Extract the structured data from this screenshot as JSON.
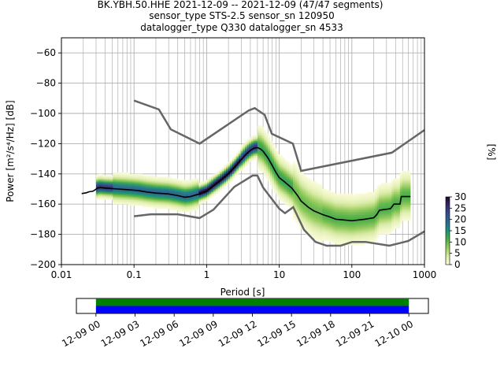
{
  "title": {
    "line1": "BK.YBH.50.HHE   2021-12-09 -- 2021-12-09  (47/47 segments)",
    "line2": "sensor_type STS-2.5 sensor_sn 120950",
    "line3": "datalogger_type Q330 datalogger_sn 4533"
  },
  "chart_data": [
    {
      "type": "heatmap",
      "xlabel": "Period [s]",
      "ylabel": "Power [m²/s⁴/Hz] [dB]",
      "x_scale": "log",
      "xlim": [
        0.01,
        1000
      ],
      "ylim": [
        -200,
        -50
      ],
      "x_ticks": [
        {
          "v": 0.01,
          "label": "0.01"
        },
        {
          "v": 0.1,
          "label": "0.1"
        },
        {
          "v": 1,
          "label": "1"
        },
        {
          "v": 10,
          "label": "10"
        },
        {
          "v": 100,
          "label": "100"
        },
        {
          "v": 1000,
          "label": "1000"
        }
      ],
      "y_ticks": [
        {
          "v": -60,
          "label": "−60"
        },
        {
          "v": -80,
          "label": "−80"
        },
        {
          "v": -100,
          "label": "−100"
        },
        {
          "v": -120,
          "label": "−120"
        },
        {
          "v": -140,
          "label": "−140"
        },
        {
          "v": -160,
          "label": "−160"
        },
        {
          "v": -180,
          "label": "−180"
        },
        {
          "v": -200,
          "label": "−200"
        }
      ],
      "grid": true,
      "colorbar": {
        "label": "[%]",
        "ticks": [
          "0",
          "5",
          "10",
          "15",
          "20",
          "25",
          "30"
        ],
        "range": [
          0,
          30
        ],
        "colors": [
          "#fffee0",
          "#d9eba5",
          "#98cc5e",
          "#4cae47",
          "#1f9279",
          "#2a6c8c",
          "#344f8c",
          "#38296b",
          "#1b0a2c"
        ]
      },
      "nhnm": [
        [
          0.1,
          -168
        ],
        [
          0.17,
          -166.7
        ],
        [
          0.4,
          -166.7
        ],
        [
          0.8,
          -169.2
        ],
        [
          1.24,
          -163.7
        ],
        [
          2.4,
          -148.6
        ],
        [
          4.3,
          -141.1
        ],
        [
          5.0,
          -141.1
        ],
        [
          6.0,
          -149.0
        ],
        [
          10.0,
          -163.0
        ],
        [
          12.0,
          -166.0
        ],
        [
          15.6,
          -162.0
        ],
        [
          21.9,
          -177.0
        ],
        [
          31.6,
          -185.0
        ],
        [
          45.0,
          -187.5
        ],
        [
          70.0,
          -187.5
        ],
        [
          101.0,
          -185.0
        ],
        [
          154.0,
          -185.0
        ],
        [
          328.0,
          -187.5
        ],
        [
          600.0,
          -184.4
        ],
        [
          1000.0,
          -178.0
        ]
      ],
      "nlnm": [
        [
          0.1,
          -91.5
        ],
        [
          0.22,
          -97.4
        ],
        [
          0.32,
          -110.5
        ],
        [
          0.8,
          -120.0
        ],
        [
          3.8,
          -98.0
        ],
        [
          4.6,
          -96.5
        ],
        [
          6.3,
          -101.0
        ],
        [
          7.9,
          -113.5
        ],
        [
          15.4,
          -120.0
        ],
        [
          20.0,
          -138.0
        ],
        [
          354.8,
          -126.0
        ],
        [
          1000,
          -111.0
        ]
      ],
      "mean_psd": [
        [
          0.019,
          -153
        ],
        [
          0.022,
          -152.5
        ],
        [
          0.024,
          -151.8
        ],
        [
          0.027,
          -151.5
        ],
        [
          0.029,
          -150.6
        ],
        [
          0.031,
          -149.5
        ],
        [
          0.034,
          -149.0
        ],
        [
          0.04,
          -149.4
        ],
        [
          0.05,
          -149.7
        ],
        [
          0.06,
          -150.0
        ],
        [
          0.08,
          -150.4
        ],
        [
          0.1,
          -150.8
        ],
        [
          0.12,
          -151.2
        ],
        [
          0.15,
          -152.0
        ],
        [
          0.2,
          -152.7
        ],
        [
          0.3,
          -153.3
        ],
        [
          0.4,
          -154.4
        ],
        [
          0.5,
          -155.4
        ],
        [
          0.6,
          -155.0
        ],
        [
          0.7,
          -154.0
        ],
        [
          0.8,
          -153.3
        ],
        [
          1.0,
          -151.5
        ],
        [
          1.2,
          -148.5
        ],
        [
          1.5,
          -145.0
        ],
        [
          2.0,
          -140.0
        ],
        [
          2.5,
          -135.0
        ],
        [
          3.0,
          -130.5
        ],
        [
          3.5,
          -127.0
        ],
        [
          4.0,
          -124.5
        ],
        [
          4.5,
          -123.0
        ],
        [
          5.0,
          -122.6
        ],
        [
          5.5,
          -123.5
        ],
        [
          6.0,
          -125.0
        ],
        [
          7.0,
          -129.5
        ],
        [
          8.0,
          -134.5
        ],
        [
          9.0,
          -139.0
        ],
        [
          10.0,
          -142.5
        ],
        [
          12.0,
          -145.5
        ],
        [
          15.0,
          -149.5
        ],
        [
          18.0,
          -154.5
        ],
        [
          20.0,
          -158.0
        ],
        [
          25.0,
          -162.0
        ],
        [
          30.0,
          -164.5
        ],
        [
          40.0,
          -167.0
        ],
        [
          50.0,
          -168.5
        ],
        [
          60.0,
          -170.0
        ],
        [
          80.0,
          -170.5
        ],
        [
          100.0,
          -171.0
        ],
        [
          150.0,
          -170.0
        ],
        [
          200.0,
          -169.0
        ],
        [
          220.0,
          -167.0
        ],
        [
          240.0,
          -164.0
        ],
        [
          340.0,
          -163.0
        ],
        [
          380.0,
          -160.0
        ],
        [
          460.0,
          -160.0
        ],
        [
          480.0,
          -155.0
        ],
        [
          640.0,
          -155.0
        ]
      ]
    },
    {
      "type": "timeline",
      "x_ticks": [
        "12-09 00",
        "12-09 03",
        "12-09 06",
        "12-09 09",
        "12-09 12",
        "12-09 15",
        "12-09 18",
        "12-09 21",
        "12-10 00"
      ],
      "x_range_hours": [
        -1.5,
        25.5
      ],
      "bars": [
        {
          "start_hour": 0,
          "end_hour": 24,
          "color": "#008000"
        },
        {
          "start_hour": 0,
          "end_hour": 24,
          "color": "#0000ff"
        }
      ]
    }
  ]
}
